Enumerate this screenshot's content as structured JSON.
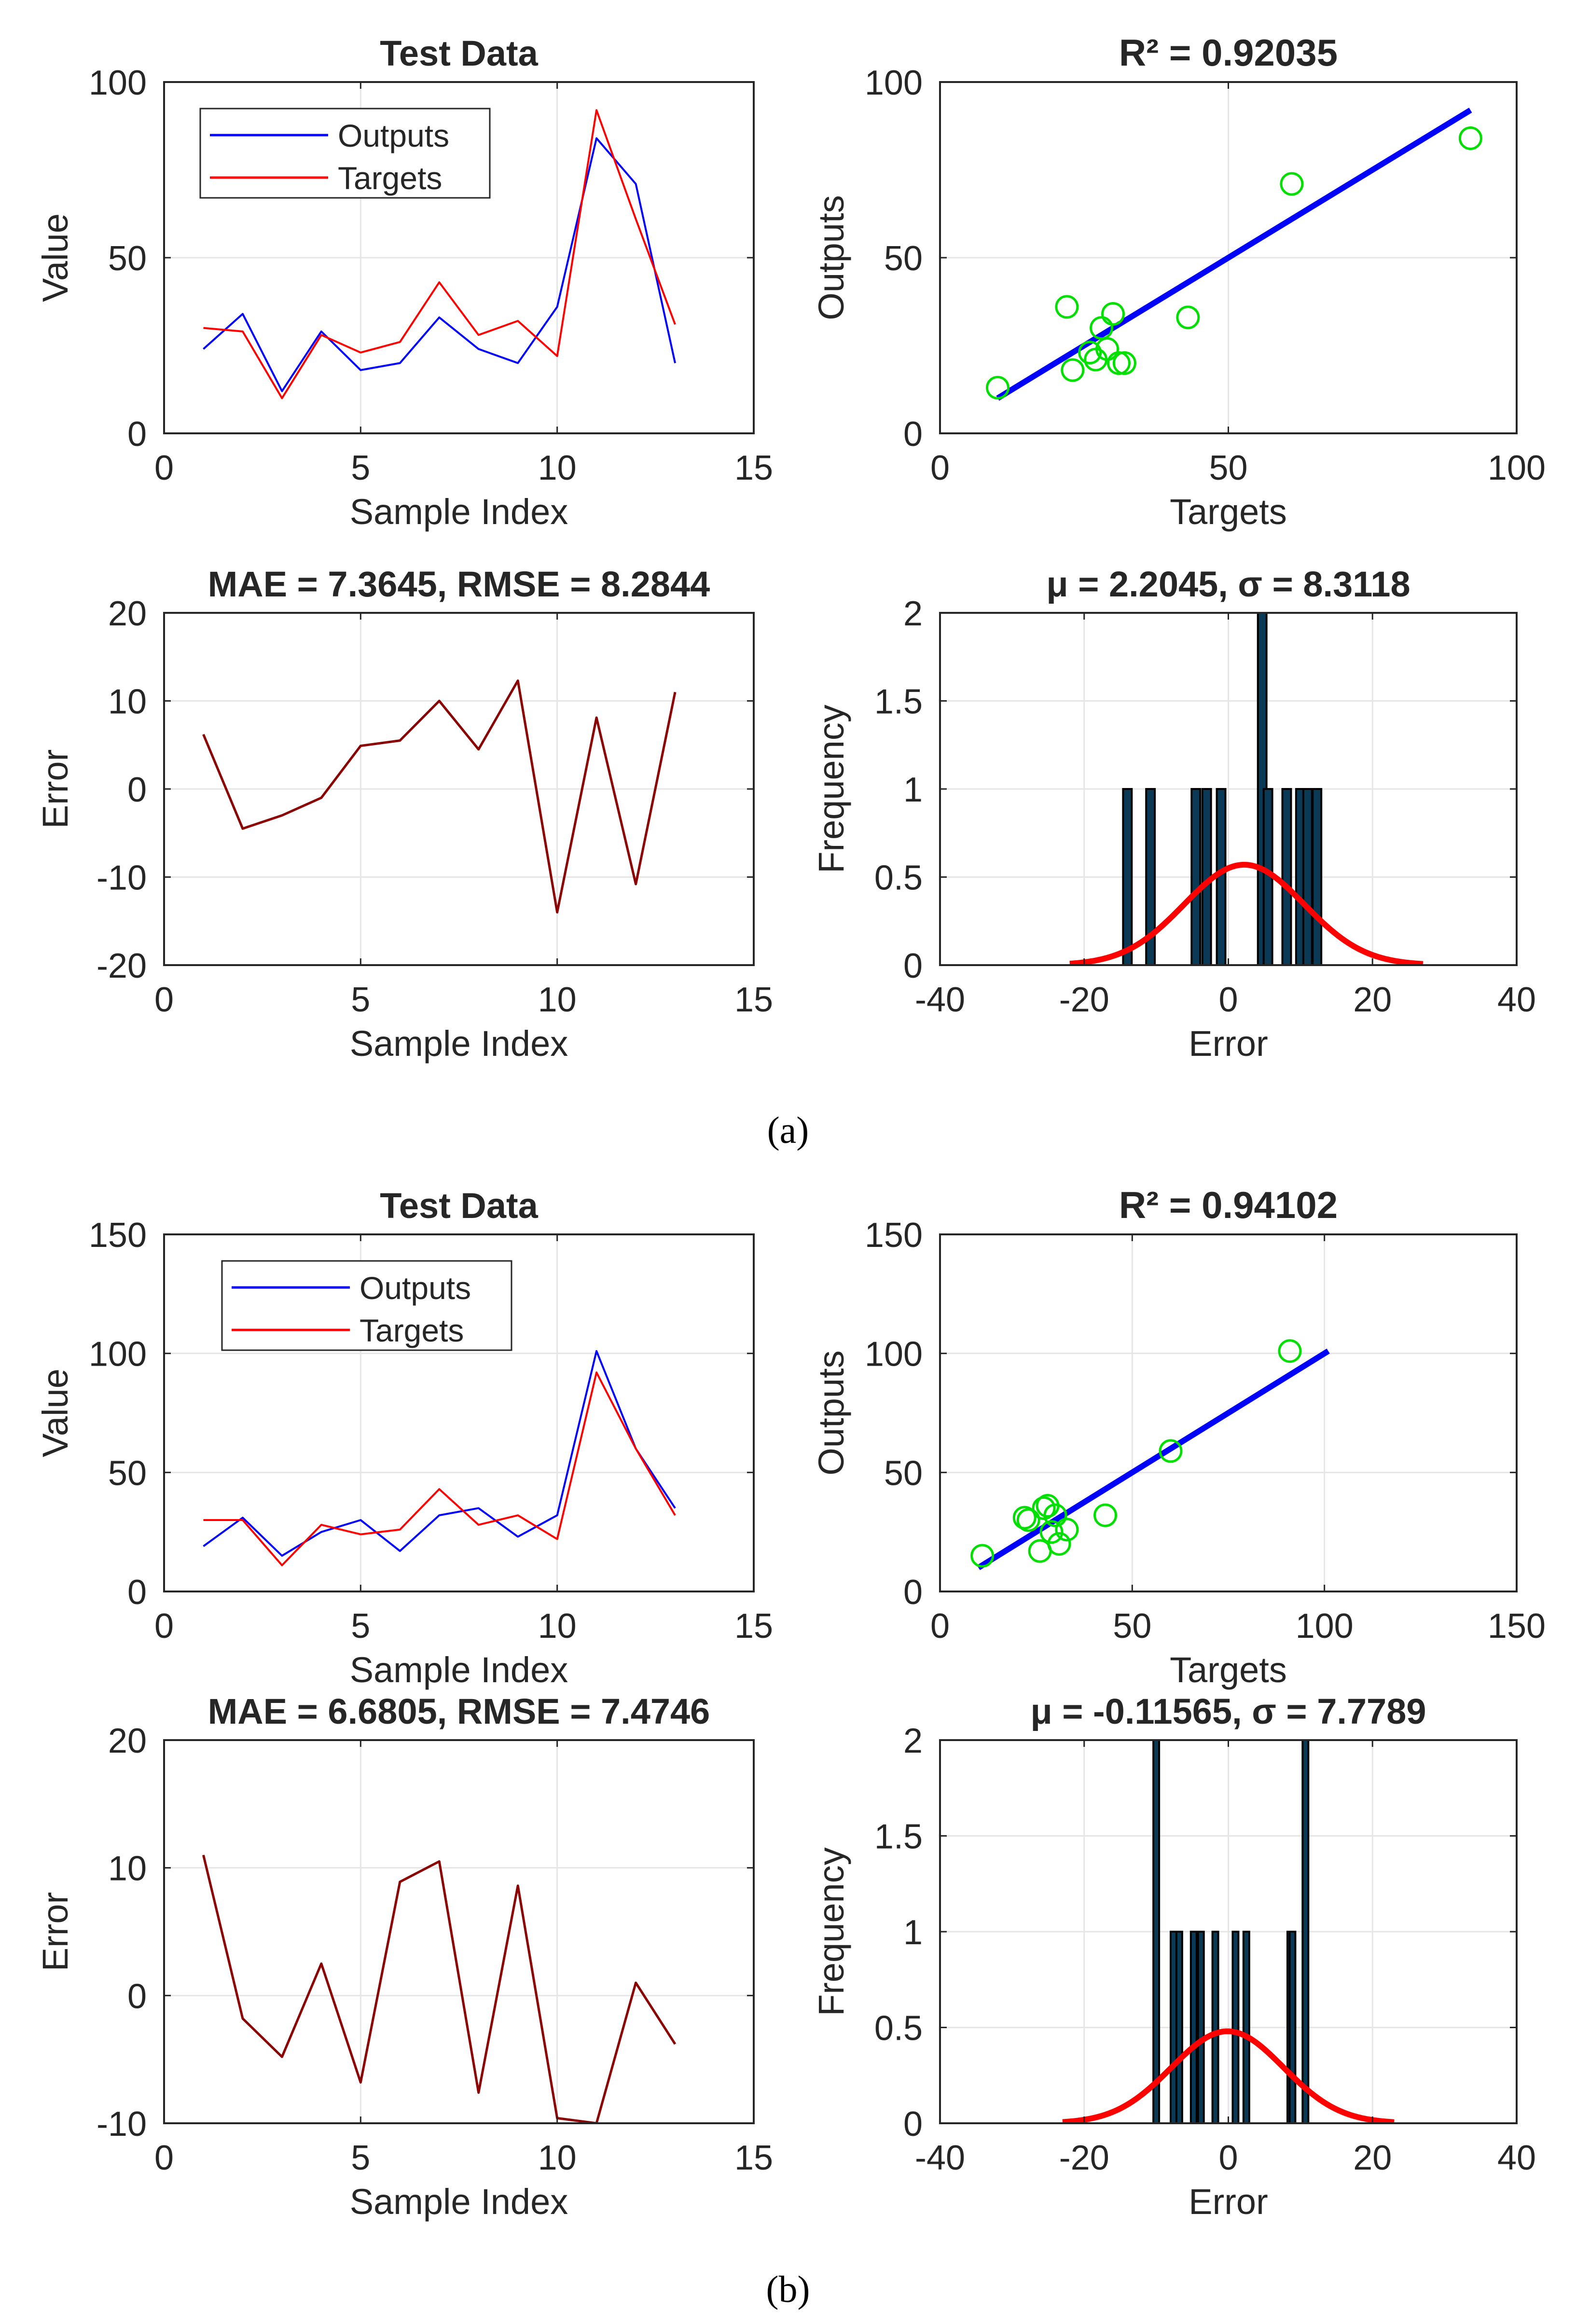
{
  "panel_labels": [
    "(a)",
    "(b)"
  ],
  "colors": {
    "outputs_line": "#0000ff",
    "targets_line": "#ff0000",
    "error_line": "#8b0000",
    "fit_line": "#0000ff",
    "scatter_marker": "#00e000",
    "hist_bar_fill": "#0a3a55",
    "hist_bar_edge": "#000000",
    "normal_curve": "#ff0000",
    "grid": "#e6e6e6",
    "axes": "#262626"
  },
  "chart_data": [
    {
      "id": "a-test",
      "type": "line",
      "title": "Test Data",
      "xlabel": "Sample Index",
      "ylabel": "Value",
      "xlim": [
        0,
        15
      ],
      "ylim": [
        0,
        100
      ],
      "xticks": [
        0,
        5,
        10,
        15
      ],
      "yticks": [
        0,
        50,
        100
      ],
      "grid": true,
      "legend": "top-left",
      "x": [
        1,
        2,
        3,
        4,
        5,
        6,
        7,
        8,
        9,
        10,
        11,
        12,
        13
      ],
      "series": [
        {
          "name": "Outputs",
          "values": [
            24,
            34,
            12,
            29,
            18,
            20,
            33,
            24,
            20,
            36,
            84,
            71,
            20
          ]
        },
        {
          "name": "Targets",
          "values": [
            30,
            29,
            10,
            28,
            23,
            26,
            43,
            28,
            32,
            22,
            92,
            61,
            31
          ]
        }
      ]
    },
    {
      "id": "a-regression",
      "type": "scatter",
      "title": "R² = 0.92035",
      "xlabel": "Targets",
      "ylabel": "Outputs",
      "xlim": [
        0,
        100
      ],
      "ylim": [
        0,
        100
      ],
      "xticks": [
        0,
        50,
        100
      ],
      "yticks": [
        0,
        50,
        100
      ],
      "grid": true,
      "points": [
        [
          10,
          13
        ],
        [
          22,
          36
        ],
        [
          23,
          18
        ],
        [
          27,
          21
        ],
        [
          28,
          30
        ],
        [
          29,
          24
        ],
        [
          30,
          34
        ],
        [
          31,
          20
        ],
        [
          32,
          20
        ],
        [
          43,
          33
        ],
        [
          61,
          71
        ],
        [
          92,
          84
        ],
        [
          26,
          23
        ]
      ],
      "fit_line": [
        [
          10,
          10
        ],
        [
          92,
          92
        ]
      ]
    },
    {
      "id": "a-error",
      "type": "line",
      "title": "MAE = 7.3645, RMSE = 8.2844",
      "xlabel": "Sample Index",
      "ylabel": "Error",
      "xlim": [
        0,
        15
      ],
      "ylim": [
        -20,
        20
      ],
      "xticks": [
        0,
        5,
        10,
        15
      ],
      "yticks": [
        -20,
        -10,
        0,
        10,
        20
      ],
      "grid": true,
      "x": [
        1,
        2,
        3,
        4,
        5,
        6,
        7,
        8,
        9,
        10,
        11,
        12,
        13
      ],
      "series": [
        {
          "values": [
            6.2,
            -4.5,
            -3.0,
            -1.0,
            4.9,
            5.5,
            10.0,
            4.5,
            12.3,
            -14.0,
            8.1,
            -10.8,
            11.0
          ]
        }
      ]
    },
    {
      "id": "a-hist",
      "type": "bar",
      "title": "μ = 2.2045, σ = 8.3118",
      "xlabel": "Error",
      "ylabel": "Frequency",
      "xlim": [
        -40,
        40
      ],
      "ylim": [
        0,
        2
      ],
      "xticks": [
        -40,
        -20,
        0,
        20,
        40
      ],
      "yticks": [
        0,
        0.5,
        1,
        1.5,
        2
      ],
      "ytick_labels": [
        "0",
        "0.5",
        "1",
        "1.5",
        "2"
      ],
      "grid": true,
      "bars": [
        {
          "x": -14.0,
          "value": 1
        },
        {
          "x": -10.8,
          "value": 1
        },
        {
          "x": -4.5,
          "value": 1
        },
        {
          "x": -3.0,
          "value": 1
        },
        {
          "x": -1.0,
          "value": 1
        },
        {
          "x": 4.7,
          "value": 2
        },
        {
          "x": 5.5,
          "value": 1
        },
        {
          "x": 8.1,
          "value": 1
        },
        {
          "x": 10.0,
          "value": 1
        },
        {
          "x": 11.0,
          "value": 1
        },
        {
          "x": 12.3,
          "value": 1
        }
      ],
      "bar_width": 1.2,
      "normal_fit": {
        "mu": 2.2045,
        "sigma": 8.3118,
        "peak": 0.57,
        "range": [
          -22,
          27
        ]
      }
    },
    {
      "id": "b-test",
      "type": "line",
      "title": "Test Data",
      "xlabel": "Sample Index",
      "ylabel": "Value",
      "xlim": [
        0,
        15
      ],
      "ylim": [
        0,
        150
      ],
      "xticks": [
        0,
        5,
        10,
        15
      ],
      "yticks": [
        0,
        50,
        100,
        150
      ],
      "grid": true,
      "legend": "top-left",
      "x": [
        1,
        2,
        3,
        4,
        5,
        6,
        7,
        8,
        9,
        10,
        11,
        12,
        13
      ],
      "series": [
        {
          "name": "Outputs",
          "values": [
            19,
            31,
            15,
            25,
            30,
            17,
            32,
            35,
            23,
            32,
            101,
            60,
            35
          ]
        },
        {
          "name": "Targets",
          "values": [
            30,
            30,
            11,
            28,
            24,
            26,
            43,
            28,
            32,
            22,
            92,
            60,
            32
          ]
        }
      ]
    },
    {
      "id": "b-regression",
      "type": "scatter",
      "title": "R² = 0.94102",
      "xlabel": "Targets",
      "ylabel": "Outputs",
      "xlim": [
        0,
        150
      ],
      "ylim": [
        0,
        150
      ],
      "xticks": [
        0,
        50,
        100,
        150
      ],
      "yticks": [
        0,
        50,
        100,
        150
      ],
      "grid": true,
      "points": [
        [
          11,
          15
        ],
        [
          22,
          31
        ],
        [
          23,
          30
        ],
        [
          26,
          17
        ],
        [
          28,
          36
        ],
        [
          29,
          25
        ],
        [
          30,
          32
        ],
        [
          31,
          20
        ],
        [
          33,
          26
        ],
        [
          43,
          32
        ],
        [
          60,
          59
        ],
        [
          91,
          101
        ],
        [
          27,
          35
        ]
      ],
      "fit_line": [
        [
          10,
          10
        ],
        [
          101,
          101
        ]
      ]
    },
    {
      "id": "b-error",
      "type": "line",
      "title": "MAE = 6.6805, RMSE = 7.4746",
      "xlabel": "Sample Index",
      "ylabel": "Error",
      "xlim": [
        0,
        15
      ],
      "ylim": [
        -10,
        20
      ],
      "xticks": [
        0,
        5,
        10,
        15
      ],
      "yticks": [
        -10,
        0,
        10,
        20
      ],
      "grid": true,
      "x": [
        1,
        2,
        3,
        4,
        5,
        6,
        7,
        8,
        9,
        10,
        11,
        12,
        13
      ],
      "series": [
        {
          "values": [
            11.0,
            -1.8,
            -4.8,
            2.5,
            -6.8,
            8.9,
            10.5,
            -7.6,
            8.6,
            -9.6,
            -10.0,
            1.0,
            -3.8
          ]
        }
      ]
    },
    {
      "id": "b-hist",
      "type": "bar",
      "title": "μ = -0.11565, σ = 7.7789",
      "xlabel": "Error",
      "ylabel": "Frequency",
      "xlim": [
        -40,
        40
      ],
      "ylim": [
        0,
        2
      ],
      "xticks": [
        -40,
        -20,
        0,
        20,
        40
      ],
      "yticks": [
        0,
        0.5,
        1,
        1.5,
        2
      ],
      "ytick_labels": [
        "0",
        "0.5",
        "1",
        "1.5",
        "2"
      ],
      "grid": true,
      "bars": [
        {
          "x": -10.0,
          "value": 2
        },
        {
          "x": -7.6,
          "value": 1
        },
        {
          "x": -6.8,
          "value": 1
        },
        {
          "x": -4.8,
          "value": 1
        },
        {
          "x": -3.8,
          "value": 1
        },
        {
          "x": -1.8,
          "value": 1
        },
        {
          "x": 1.0,
          "value": 1
        },
        {
          "x": 2.5,
          "value": 1
        },
        {
          "x": 8.6,
          "value": 1
        },
        {
          "x": 8.9,
          "value": 1
        },
        {
          "x": 10.7,
          "value": 2
        }
      ],
      "bar_width": 0.8,
      "normal_fit": {
        "mu": -0.11565,
        "sigma": 7.7789,
        "peak": 0.48,
        "range": [
          -23,
          23
        ]
      }
    }
  ]
}
